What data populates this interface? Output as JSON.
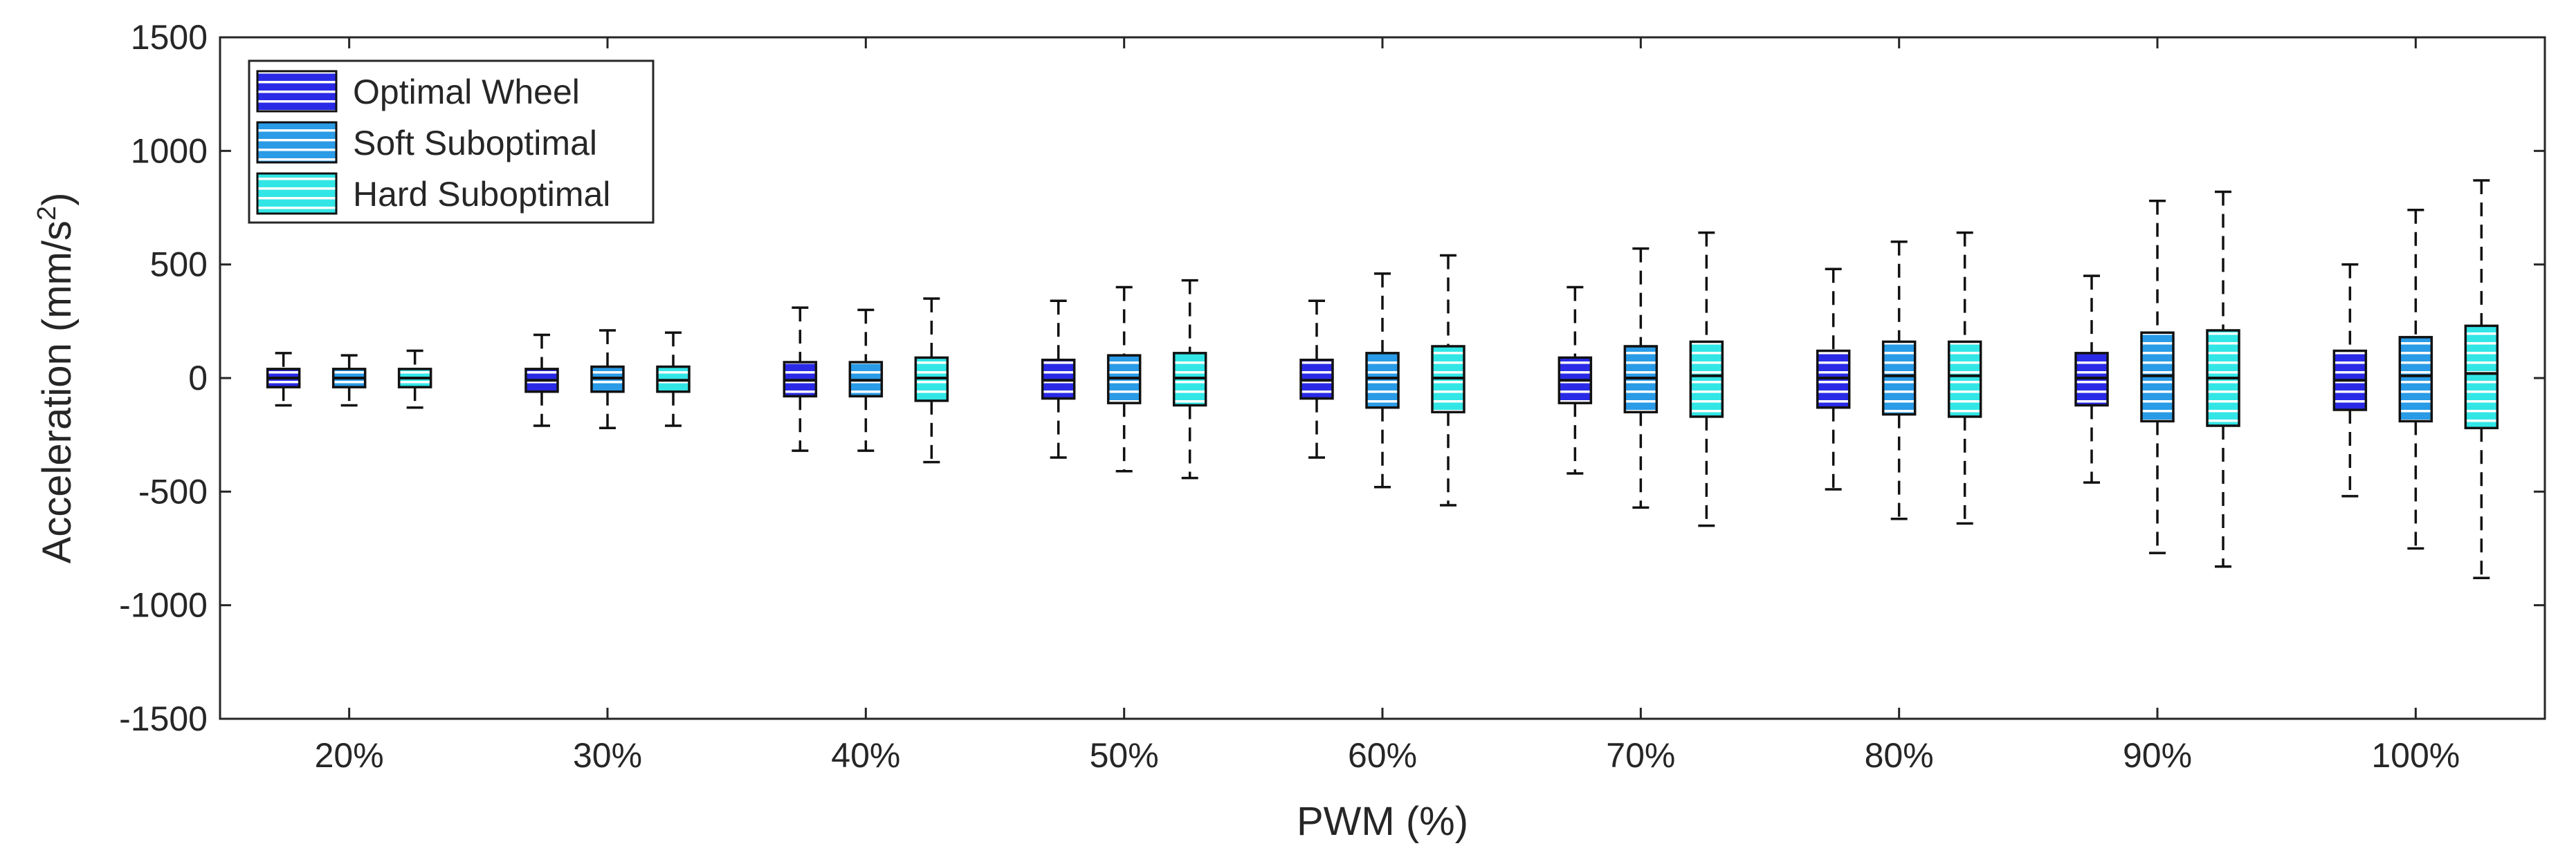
{
  "chart_data": {
    "type": "boxplot",
    "title": "",
    "xlabel": "PWM (%)",
    "ylabel_main": "Acceleration (mm/s",
    "ylabel_sup": "2",
    "ylabel_close": ")",
    "ylim": [
      -1500,
      1500
    ],
    "yticks": [
      -1500,
      -1000,
      -500,
      0,
      500,
      1000,
      1500
    ],
    "categories": [
      "20%",
      "30%",
      "40%",
      "50%",
      "60%",
      "70%",
      "80%",
      "90%",
      "100%"
    ],
    "legend_position": "top-left",
    "series": [
      {
        "name": "Optimal Wheel",
        "color": "#2a2ae6",
        "stats": [
          {
            "min": -120,
            "q1": -40,
            "median": 0,
            "q3": 40,
            "max": 110
          },
          {
            "min": -210,
            "q1": -60,
            "median": -10,
            "q3": 40,
            "max": 190
          },
          {
            "min": -320,
            "q1": -80,
            "median": -10,
            "q3": 70,
            "max": 310
          },
          {
            "min": -350,
            "q1": -90,
            "median": -10,
            "q3": 80,
            "max": 340
          },
          {
            "min": -350,
            "q1": -90,
            "median": -10,
            "q3": 80,
            "max": 340
          },
          {
            "min": -420,
            "q1": -110,
            "median": -10,
            "q3": 90,
            "max": 400
          },
          {
            "min": -490,
            "q1": -130,
            "median": 0,
            "q3": 120,
            "max": 480
          },
          {
            "min": -460,
            "q1": -120,
            "median": 0,
            "q3": 110,
            "max": 450
          },
          {
            "min": -520,
            "q1": -140,
            "median": -10,
            "q3": 120,
            "max": 500
          }
        ]
      },
      {
        "name": "Soft Suboptimal",
        "color": "#2a9be6",
        "stats": [
          {
            "min": -120,
            "q1": -40,
            "median": 0,
            "q3": 40,
            "max": 100
          },
          {
            "min": -220,
            "q1": -60,
            "median": 0,
            "q3": 50,
            "max": 210
          },
          {
            "min": -320,
            "q1": -80,
            "median": -10,
            "q3": 70,
            "max": 300
          },
          {
            "min": -410,
            "q1": -110,
            "median": 0,
            "q3": 100,
            "max": 400
          },
          {
            "min": -480,
            "q1": -130,
            "median": 0,
            "q3": 110,
            "max": 460
          },
          {
            "min": -570,
            "q1": -150,
            "median": 0,
            "q3": 140,
            "max": 570
          },
          {
            "min": -620,
            "q1": -160,
            "median": 10,
            "q3": 160,
            "max": 600
          },
          {
            "min": -770,
            "q1": -190,
            "median": 10,
            "q3": 200,
            "max": 780
          },
          {
            "min": -750,
            "q1": -190,
            "median": 10,
            "q3": 180,
            "max": 740
          }
        ]
      },
      {
        "name": "Hard Suboptimal",
        "color": "#33e6e6",
        "stats": [
          {
            "min": -130,
            "q1": -40,
            "median": 0,
            "q3": 40,
            "max": 120
          },
          {
            "min": -210,
            "q1": -60,
            "median": -10,
            "q3": 50,
            "max": 200
          },
          {
            "min": -370,
            "q1": -100,
            "median": 0,
            "q3": 90,
            "max": 350
          },
          {
            "min": -440,
            "q1": -120,
            "median": 0,
            "q3": 110,
            "max": 430
          },
          {
            "min": -560,
            "q1": -150,
            "median": 0,
            "q3": 140,
            "max": 540
          },
          {
            "min": -650,
            "q1": -170,
            "median": 10,
            "q3": 160,
            "max": 640
          },
          {
            "min": -640,
            "q1": -170,
            "median": 10,
            "q3": 160,
            "max": 640
          },
          {
            "min": -830,
            "q1": -210,
            "median": 0,
            "q3": 210,
            "max": 820
          },
          {
            "min": -880,
            "q1": -220,
            "median": 20,
            "q3": 230,
            "max": 870
          }
        ]
      }
    ]
  }
}
